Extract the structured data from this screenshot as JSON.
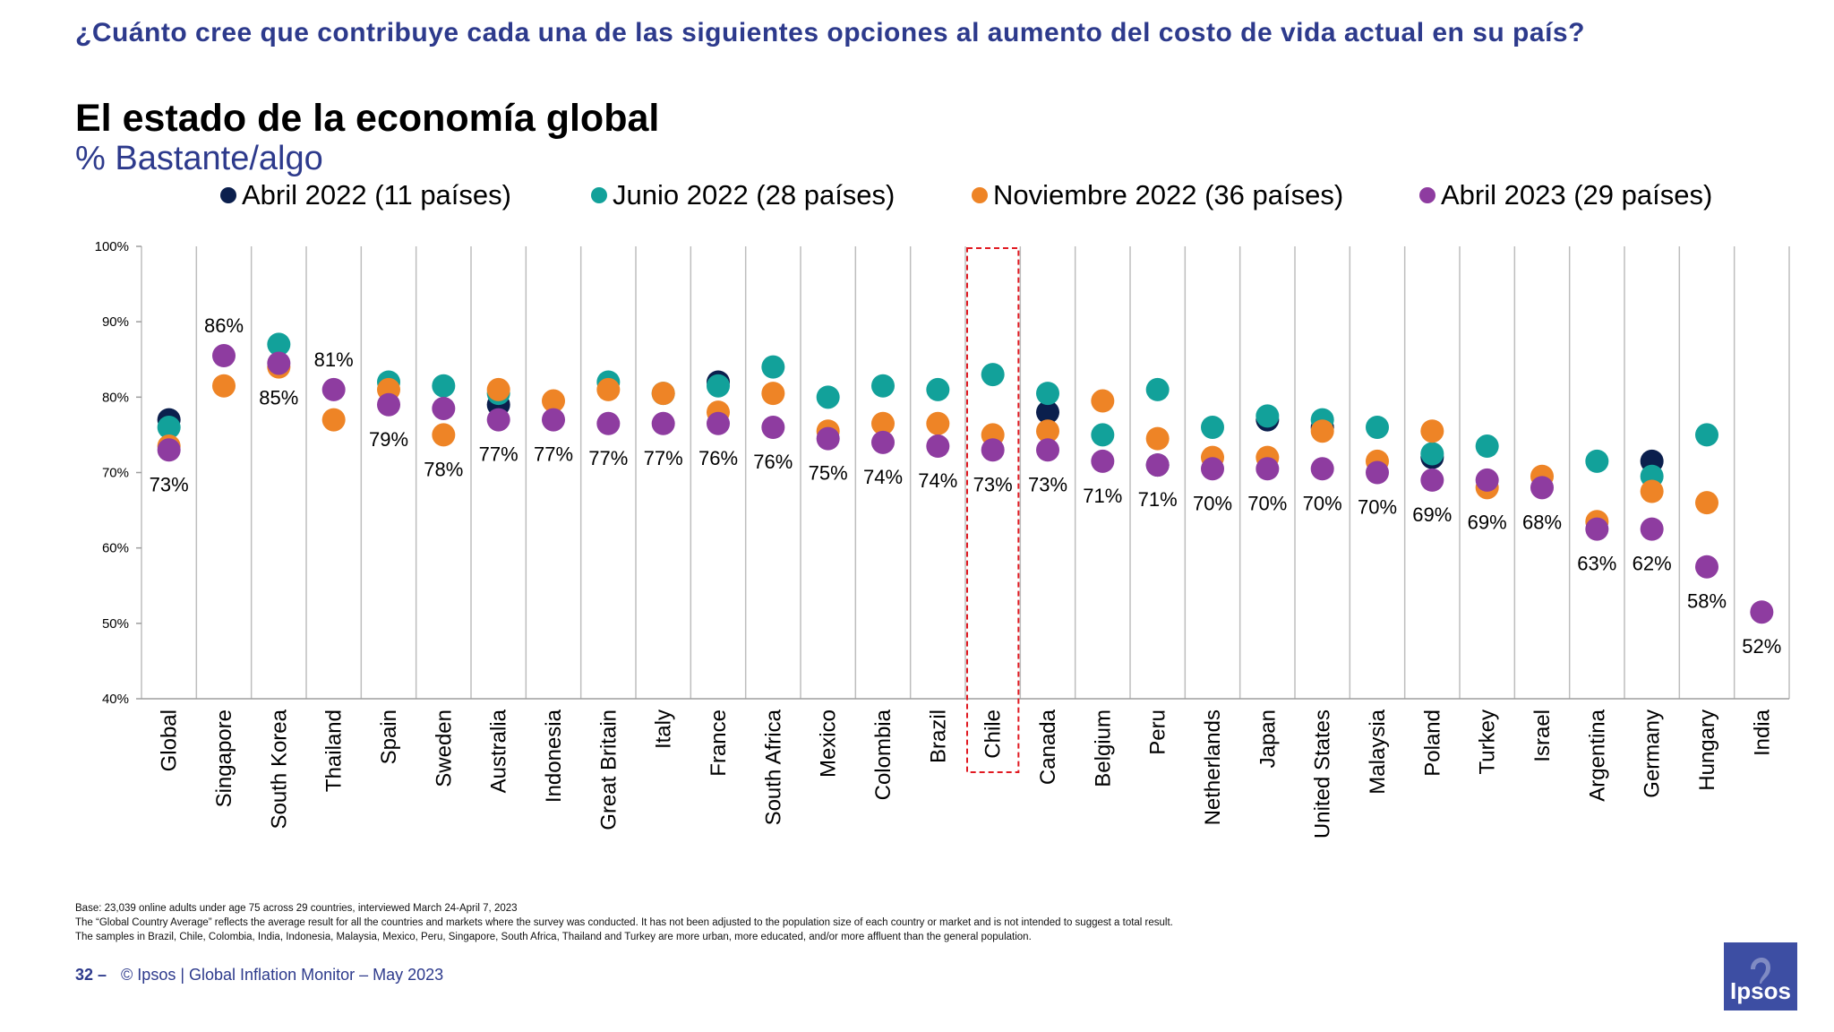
{
  "header": {
    "question": "¿Cuánto cree que contribuye cada una de las siguientes opciones al aumento del costo de vida actual en su país?",
    "title": "El estado de la economía global",
    "subtitle": "% Bastante/algo"
  },
  "chart_data": {
    "type": "scatter",
    "yaxis": {
      "ylim": [
        40,
        100
      ],
      "ticks": [
        "40%",
        "50%",
        "60%",
        "70%",
        "80%",
        "90%",
        "100%"
      ],
      "tick_values": [
        40,
        50,
        60,
        70,
        80,
        90,
        100
      ]
    },
    "categories": [
      "Global",
      "Singapore",
      "South Korea",
      "Thailand",
      "Spain",
      "Sweden",
      "Australia",
      "Indonesia",
      "Great Britain",
      "Italy",
      "France",
      "South Africa",
      "Mexico",
      "Colombia",
      "Brazil",
      "Chile",
      "Canada",
      "Belgium",
      "Peru",
      "Netherlands",
      "Japan",
      "United States",
      "Malaysia",
      "Poland",
      "Turkey",
      "Israel",
      "Argentina",
      "Germany",
      "Hungary",
      "India"
    ],
    "highlight_category": "Chile",
    "series": [
      {
        "name": "Abril 2022 (11 países)",
        "color": "#0b1f4d",
        "values": [
          77,
          null,
          null,
          null,
          null,
          null,
          79,
          null,
          null,
          null,
          82,
          null,
          null,
          null,
          null,
          null,
          78,
          null,
          71,
          null,
          77,
          76,
          null,
          72,
          null,
          null,
          null,
          71.5,
          null,
          null
        ]
      },
      {
        "name": "Junio 2022 (28 países)",
        "color": "#12a19a",
        "values": [
          76,
          null,
          87,
          null,
          82,
          81.5,
          80.5,
          null,
          82,
          80.5,
          81.5,
          84,
          80,
          81.5,
          81,
          83,
          80.5,
          75,
          81,
          76,
          77.5,
          77,
          76,
          72.5,
          73.5,
          null,
          71.5,
          69.5,
          75,
          null
        ]
      },
      {
        "name": "Noviembre 2022 (36 países)",
        "color": "#ee8426",
        "values": [
          73.5,
          81.5,
          84,
          77,
          81,
          75,
          81,
          79.5,
          81,
          80.5,
          78,
          80.5,
          75.5,
          76.5,
          76.5,
          75,
          75.5,
          79.5,
          74.5,
          72,
          72,
          75.5,
          71.5,
          75.5,
          68,
          69.5,
          63.5,
          67.5,
          66,
          null
        ]
      },
      {
        "name": "Abril 2023 (29 países)",
        "color": "#8e3ca0",
        "values": [
          73,
          85.5,
          84.5,
          81,
          79,
          78.5,
          77,
          77,
          76.5,
          76.5,
          76.5,
          76,
          74.5,
          74,
          73.5,
          73,
          73,
          71.5,
          71,
          70.5,
          70.5,
          70.5,
          70,
          69,
          69,
          68,
          62.5,
          62.5,
          57.5,
          51.5
        ],
        "labels": [
          "73%",
          "86%",
          "85%",
          "81%",
          "79%",
          "78%",
          "77%",
          "77%",
          "77%",
          "77%",
          "76%",
          "76%",
          "75%",
          "74%",
          "74%",
          "73%",
          "73%",
          "71%",
          "71%",
          "70%",
          "70%",
          "70%",
          "70%",
          "69%",
          "69%",
          "68%",
          "63%",
          "62%",
          "58%",
          "52%"
        ]
      }
    ]
  },
  "footnotes": {
    "base": "Base: 23,039 online adults under age 75 across 29 countries, interviewed March 24-April 7, 2023",
    "gca": "The “Global Country Average” reflects the average result for all the countries and markets where the survey was conducted. It has not been adjusted to the population size of each country or market and is not intended to suggest a total result.",
    "samples": "The samples in Brazil, Chile, Colombia, India, Indonesia, Malaysia, Mexico, Peru, Singapore, South Africa, Thailand and Turkey are more urban, more educated, and/or more affluent than the general population."
  },
  "footer": {
    "page": "32 –",
    "source": "© Ipsos | Global Inflation Monitor – May 2023"
  },
  "logo": {
    "text": "Ipsos",
    "color": "#3d4ea3"
  }
}
